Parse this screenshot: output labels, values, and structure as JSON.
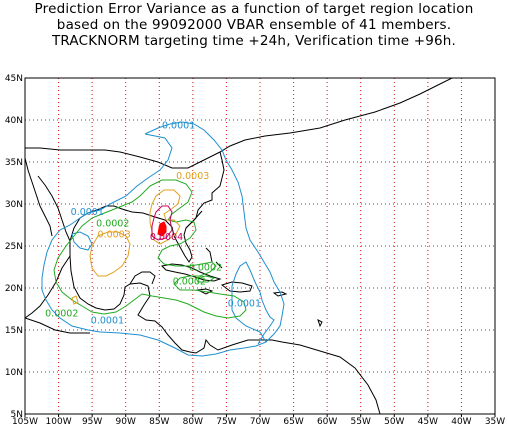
{
  "title": {
    "line1": "Prediction Error Variance as a function of target region location",
    "line2": "based on the 99092000 VBAR ensemble of 41 members.",
    "line3": "TRACKNORM targeting time +24h, Verification time +96h."
  },
  "axes": {
    "lon_labels": [
      "105W",
      "100W",
      "95W",
      "90W",
      "85W",
      "80W",
      "75W",
      "70W",
      "65W",
      "60W",
      "55W",
      "50W",
      "45W",
      "40W",
      "35W"
    ],
    "lat_labels": [
      "45N",
      "40N",
      "35N",
      "30N",
      "25N",
      "20N",
      "15N",
      "10N",
      "5N"
    ],
    "lon_range": [
      -105,
      -35
    ],
    "lat_range": [
      5,
      45
    ],
    "grid": "dotted red every 5 degrees"
  },
  "contour_levels": [
    {
      "value": "0.0001",
      "color": "#1f8fd0"
    },
    {
      "value": "0.0002",
      "color": "#22aa22"
    },
    {
      "value": "0.0003",
      "color": "#e0a020"
    },
    {
      "value": "0.0004",
      "color": "#c80060"
    }
  ],
  "contour_labels": [
    {
      "text": "0.0001",
      "color": "#1f8fd0",
      "lon": -84.6,
      "lat": 39.0
    },
    {
      "text": "0.0001",
      "color": "#1f8fd0",
      "lon": -98.2,
      "lat": 28.7
    },
    {
      "text": "0.0001",
      "color": "#1f8fd0",
      "lon": -95.2,
      "lat": 15.8
    },
    {
      "text": "0.0001",
      "color": "#1f8fd0",
      "lon": -74.8,
      "lat": 17.8
    },
    {
      "text": "0.0002",
      "color": "#22aa22",
      "lon": -94.4,
      "lat": 27.3
    },
    {
      "text": "0.0002",
      "color": "#22aa22",
      "lon": -80.6,
      "lat": 22.1
    },
    {
      "text": "0.0002",
      "color": "#22aa22",
      "lon": -83.0,
      "lat": 20.4
    },
    {
      "text": "0.0002",
      "color": "#22aa22",
      "lon": -102.0,
      "lat": 16.6
    },
    {
      "text": "0.0003",
      "color": "#e0a020",
      "lon": -82.5,
      "lat": 33.0
    },
    {
      "text": "0.0003",
      "color": "#e0a020",
      "lon": -94.2,
      "lat": 26.0
    },
    {
      "text": "0.0004",
      "color": "#c80060",
      "lon": -86.4,
      "lat": 25.7
    }
  ],
  "coast_color": "#000000",
  "grid_color": "#e01010"
}
